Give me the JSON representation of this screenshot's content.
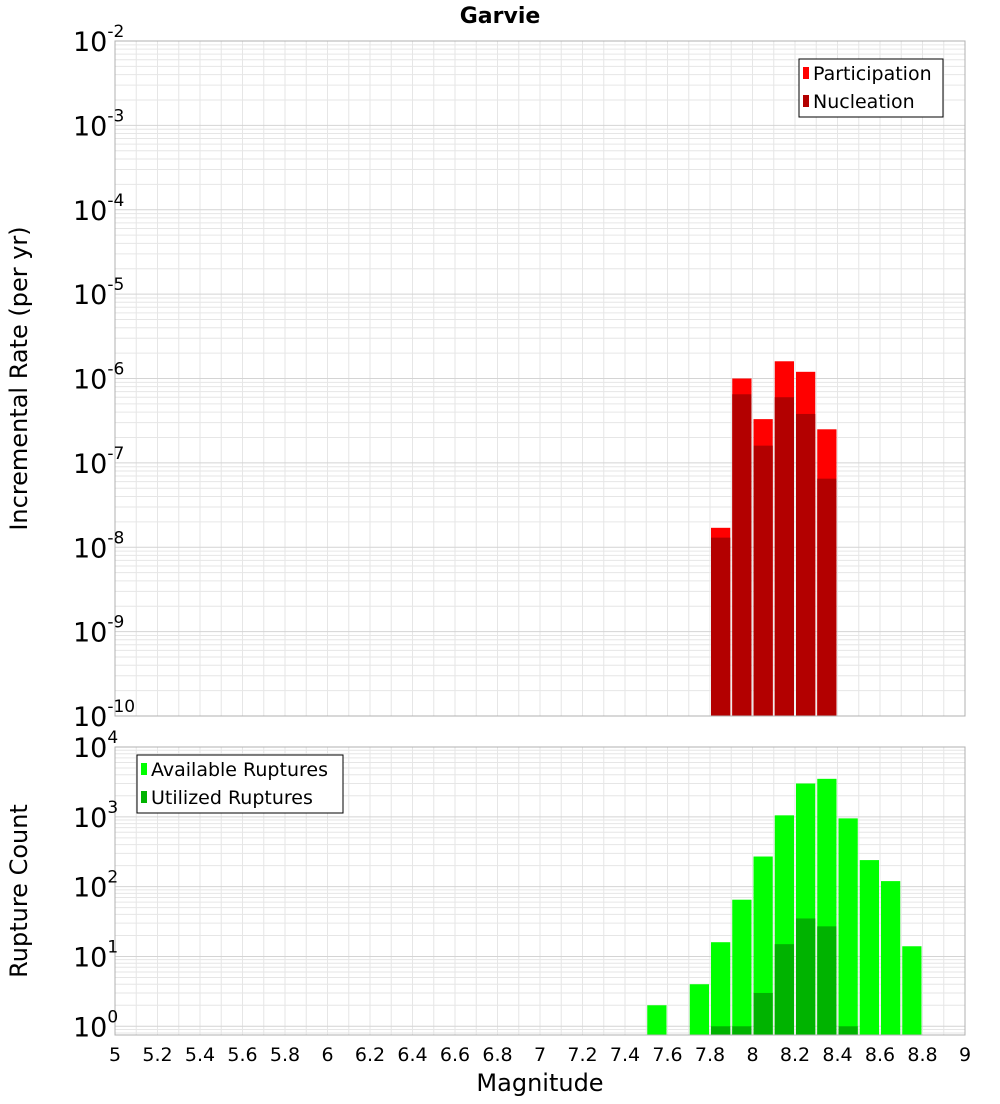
{
  "title": "Garvie",
  "colors": {
    "participation": "#ff0000",
    "nucleation": "#b30000",
    "available": "#00ff00",
    "utilized": "#00b300",
    "grid": "#e6e6e6",
    "plot_border": "#b0b0b0",
    "legend_border": "#000000"
  },
  "chart_data": [
    {
      "type": "bar",
      "scale": "log",
      "ylabel": "Incremental Rate (per yr)",
      "xlim": [
        5,
        9
      ],
      "ylim": [
        1e-10,
        0.01
      ],
      "yticks": [
        {
          "base": "10",
          "exp": "-2",
          "value": 0.01
        },
        {
          "base": "10",
          "exp": "-3",
          "value": 0.001
        },
        {
          "base": "10",
          "exp": "-4",
          "value": 0.0001
        },
        {
          "base": "10",
          "exp": "-5",
          "value": 1e-05
        },
        {
          "base": "10",
          "exp": "-6",
          "value": 1e-06
        },
        {
          "base": "10",
          "exp": "-7",
          "value": 1e-07
        },
        {
          "base": "10",
          "exp": "-8",
          "value": 1e-08
        },
        {
          "base": "10",
          "exp": "-9",
          "value": 1e-09
        },
        {
          "base": "10",
          "exp": "-10",
          "value": 1e-10
        }
      ],
      "legend": {
        "position": "top-right",
        "entries": [
          "Participation",
          "Nucleation"
        ]
      },
      "series": [
        {
          "name": "Participation",
          "x": [
            7.85,
            7.95,
            8.05,
            8.15,
            8.25,
            8.35
          ],
          "values": [
            1.7e-08,
            1e-06,
            3.3e-07,
            1.6e-06,
            1.2e-06,
            2.5e-07
          ]
        },
        {
          "name": "Nucleation",
          "x": [
            7.85,
            7.95,
            8.05,
            8.15,
            8.25,
            8.35
          ],
          "values": [
            1.3e-08,
            6.5e-07,
            1.6e-07,
            6e-07,
            3.8e-07,
            6.5e-08
          ]
        }
      ]
    },
    {
      "type": "bar",
      "scale": "log",
      "ylabel": "Rupture Count",
      "xlabel": "Magnitude",
      "xlim": [
        5,
        9
      ],
      "ylim": [
        0.75,
        10000
      ],
      "yticks": [
        {
          "base": "10",
          "exp": "4",
          "value": 10000
        },
        {
          "base": "10",
          "exp": "3",
          "value": 1000
        },
        {
          "base": "10",
          "exp": "2",
          "value": 100
        },
        {
          "base": "10",
          "exp": "1",
          "value": 10
        },
        {
          "base": "10",
          "exp": "0",
          "value": 1
        }
      ],
      "xticks": [
        "5",
        "5.2",
        "5.4",
        "5.6",
        "5.8",
        "6",
        "6.2",
        "6.4",
        "6.6",
        "6.8",
        "7",
        "7.2",
        "7.4",
        "7.6",
        "7.8",
        "8",
        "8.2",
        "8.4",
        "8.6",
        "8.8",
        "9"
      ],
      "legend": {
        "position": "top-left",
        "entries": [
          "Available Ruptures",
          "Utilized Ruptures"
        ]
      },
      "series": [
        {
          "name": "Available Ruptures",
          "x": [
            7.55,
            7.75,
            7.85,
            7.95,
            8.05,
            8.15,
            8.25,
            8.35,
            8.45,
            8.55,
            8.65,
            8.75
          ],
          "values": [
            2,
            4,
            16,
            65,
            270,
            1050,
            3000,
            3500,
            950,
            240,
            120,
            14
          ]
        },
        {
          "name": "Utilized Ruptures",
          "x": [
            7.85,
            7.95,
            8.05,
            8.15,
            8.25,
            8.35,
            8.45
          ],
          "values": [
            1,
            1,
            3,
            15,
            35,
            27,
            1
          ]
        }
      ]
    }
  ]
}
